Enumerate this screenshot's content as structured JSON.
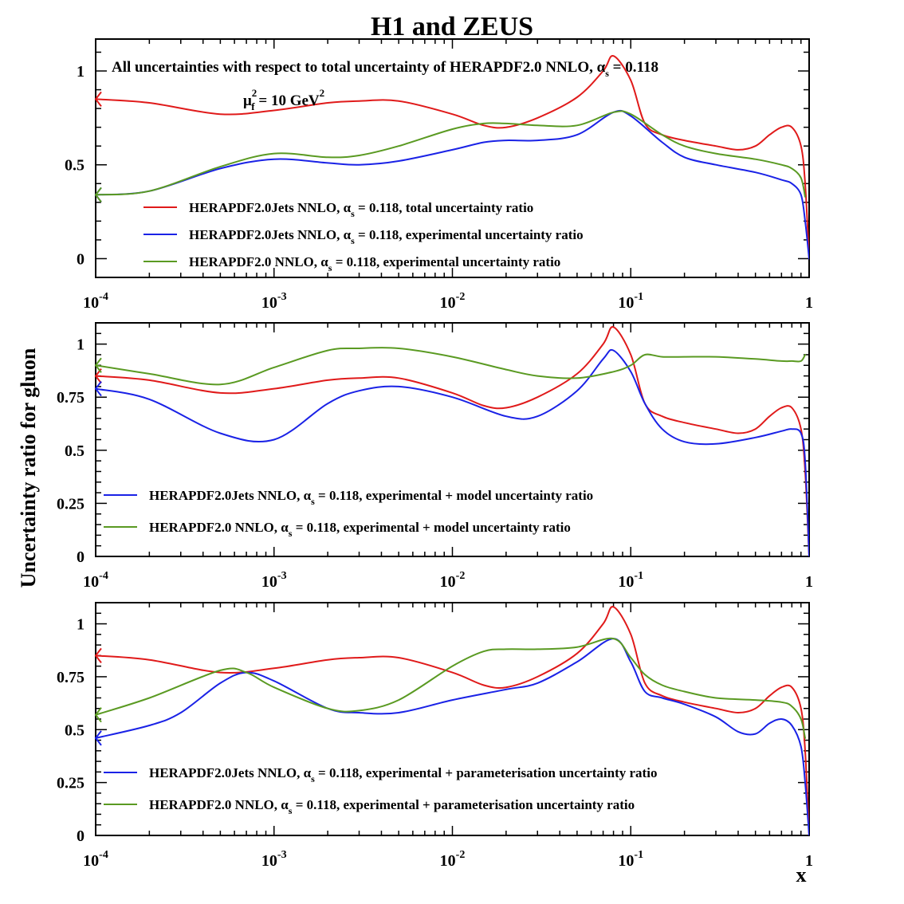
{
  "title": "H1 and ZEUS",
  "ylabel": "Uncertainty ratio for gluon",
  "xlabel": "x",
  "colors": {
    "red": "#e01a1a",
    "blue": "#1a22e6",
    "green": "#5a9a22"
  },
  "x_ticks": [
    {
      "value": 0.0001,
      "base": "10",
      "exp": "-4"
    },
    {
      "value": 0.001,
      "base": "10",
      "exp": "-3"
    },
    {
      "value": 0.01,
      "base": "10",
      "exp": "-2"
    },
    {
      "value": 0.1,
      "base": "10",
      "exp": "-1"
    },
    {
      "value": 1,
      "base": "1",
      "exp": ""
    }
  ],
  "chart_data": [
    {
      "type": "line",
      "xscale": "log",
      "xlim": [
        0.0001,
        1
      ],
      "ylim": [
        -0.1,
        1.17
      ],
      "y_ticks": [
        {
          "v": 0,
          "label": "0"
        },
        {
          "v": 0.5,
          "label": "0.5"
        },
        {
          "v": 1,
          "label": "1"
        }
      ],
      "annotation": {
        "pre": "All uncertainties with respect to total uncertainty of  HERAPDF2.0 NNLO, ",
        "sym": "α",
        "sub": "s",
        "post": " = 0.118"
      },
      "scale_label": {
        "mu": "μ",
        "sub": "f",
        "sup1": "2",
        "mid": " = 10 GeV",
        "sup2": "2"
      },
      "series": [
        {
          "color": "red",
          "legend": {
            "pre": "HERAPDF2.0Jets NNLO, ",
            "sym": "α",
            "sub": "s",
            "post": " = 0.118, total uncertainty ratio"
          },
          "x": [
            0.0001,
            0.0002,
            0.0005,
            0.001,
            0.002,
            0.003,
            0.005,
            0.01,
            0.015,
            0.02,
            0.03,
            0.05,
            0.07,
            0.08,
            0.1,
            0.12,
            0.15,
            0.2,
            0.3,
            0.4,
            0.5,
            0.6,
            0.7,
            0.8,
            0.9,
            0.95,
            1
          ],
          "y": [
            0.85,
            0.83,
            0.77,
            0.79,
            0.83,
            0.84,
            0.84,
            0.77,
            0.71,
            0.7,
            0.75,
            0.86,
            1.0,
            1.08,
            0.95,
            0.72,
            0.66,
            0.63,
            0.6,
            0.58,
            0.6,
            0.66,
            0.7,
            0.7,
            0.6,
            0.4,
            0.0
          ]
        },
        {
          "color": "blue",
          "legend": {
            "pre": "HERAPDF2.0Jets NNLO, ",
            "sym": "α",
            "sub": "s",
            "post": " = 0.118, experimental uncertainty ratio"
          },
          "x": [
            0.0001,
            0.0002,
            0.0005,
            0.001,
            0.002,
            0.003,
            0.005,
            0.01,
            0.015,
            0.02,
            0.03,
            0.05,
            0.08,
            0.1,
            0.15,
            0.2,
            0.3,
            0.5,
            0.7,
            0.8,
            0.9,
            0.95,
            1
          ],
          "y": [
            0.34,
            0.36,
            0.48,
            0.53,
            0.51,
            0.5,
            0.52,
            0.58,
            0.62,
            0.63,
            0.63,
            0.66,
            0.78,
            0.76,
            0.62,
            0.54,
            0.5,
            0.46,
            0.42,
            0.4,
            0.34,
            0.2,
            0.0
          ]
        },
        {
          "color": "green",
          "legend": {
            "pre": "HERAPDF2.0 NNLO, ",
            "sym": "α",
            "sub": "s",
            "post": " = 0.118, experimental uncertainty ratio"
          },
          "x": [
            0.0001,
            0.0002,
            0.0005,
            0.001,
            0.002,
            0.003,
            0.005,
            0.01,
            0.015,
            0.02,
            0.03,
            0.05,
            0.08,
            0.1,
            0.15,
            0.2,
            0.3,
            0.5,
            0.7,
            0.8,
            0.9,
            0.95
          ],
          "y": [
            0.34,
            0.36,
            0.49,
            0.56,
            0.54,
            0.55,
            0.6,
            0.69,
            0.72,
            0.72,
            0.71,
            0.71,
            0.78,
            0.77,
            0.66,
            0.6,
            0.56,
            0.53,
            0.5,
            0.48,
            0.43,
            0.33
          ]
        }
      ]
    },
    {
      "type": "line",
      "xscale": "log",
      "xlim": [
        0.0001,
        1
      ],
      "ylim": [
        0,
        1.1
      ],
      "y_ticks": [
        {
          "v": 0,
          "label": "0"
        },
        {
          "v": 0.25,
          "label": "0.25"
        },
        {
          "v": 0.5,
          "label": "0.5"
        },
        {
          "v": 0.75,
          "label": "0.75"
        },
        {
          "v": 1,
          "label": "1"
        }
      ],
      "series": [
        {
          "color": "red",
          "x": [
            0.0001,
            0.0002,
            0.0005,
            0.001,
            0.002,
            0.003,
            0.005,
            0.01,
            0.015,
            0.02,
            0.03,
            0.05,
            0.07,
            0.08,
            0.1,
            0.12,
            0.15,
            0.2,
            0.3,
            0.4,
            0.5,
            0.6,
            0.7,
            0.8,
            0.9,
            0.95,
            1
          ],
          "y": [
            0.85,
            0.83,
            0.77,
            0.79,
            0.83,
            0.84,
            0.84,
            0.77,
            0.71,
            0.7,
            0.75,
            0.86,
            1.0,
            1.08,
            0.95,
            0.72,
            0.66,
            0.63,
            0.6,
            0.58,
            0.6,
            0.66,
            0.7,
            0.7,
            0.6,
            0.4,
            0.0
          ]
        },
        {
          "color": "blue",
          "legend": {
            "pre": "HERAPDF2.0Jets NNLO, ",
            "sym": "α",
            "sub": "s",
            "post": " = 0.118, experimental + model uncertainty ratio"
          },
          "x": [
            0.0001,
            0.0002,
            0.0005,
            0.001,
            0.002,
            0.003,
            0.005,
            0.01,
            0.02,
            0.03,
            0.05,
            0.07,
            0.08,
            0.1,
            0.12,
            0.15,
            0.2,
            0.3,
            0.5,
            0.7,
            0.8,
            0.9,
            0.95,
            1
          ],
          "y": [
            0.79,
            0.74,
            0.58,
            0.55,
            0.72,
            0.78,
            0.8,
            0.75,
            0.66,
            0.66,
            0.78,
            0.93,
            0.97,
            0.87,
            0.72,
            0.6,
            0.54,
            0.53,
            0.56,
            0.59,
            0.6,
            0.58,
            0.45,
            0.0
          ]
        },
        {
          "color": "green",
          "legend": {
            "pre": "HERAPDF2.0 NNLO, ",
            "sym": "α",
            "sub": "s",
            "post": " = 0.118, experimental + model uncertainty ratio"
          },
          "x": [
            0.0001,
            0.0002,
            0.0005,
            0.001,
            0.002,
            0.003,
            0.005,
            0.01,
            0.02,
            0.03,
            0.05,
            0.08,
            0.1,
            0.12,
            0.15,
            0.2,
            0.3,
            0.5,
            0.7,
            0.8,
            0.9,
            0.95
          ],
          "y": [
            0.9,
            0.86,
            0.81,
            0.89,
            0.97,
            0.98,
            0.98,
            0.94,
            0.88,
            0.85,
            0.84,
            0.87,
            0.9,
            0.95,
            0.94,
            0.94,
            0.94,
            0.93,
            0.92,
            0.92,
            0.92,
            0.95
          ]
        }
      ]
    },
    {
      "type": "line",
      "xscale": "log",
      "xlim": [
        0.0001,
        1
      ],
      "ylim": [
        0,
        1.1
      ],
      "y_ticks": [
        {
          "v": 0,
          "label": "0"
        },
        {
          "v": 0.25,
          "label": "0.25"
        },
        {
          "v": 0.5,
          "label": "0.5"
        },
        {
          "v": 0.75,
          "label": "0.75"
        },
        {
          "v": 1,
          "label": "1"
        }
      ],
      "series": [
        {
          "color": "red",
          "x": [
            0.0001,
            0.0002,
            0.0005,
            0.001,
            0.002,
            0.003,
            0.005,
            0.01,
            0.015,
            0.02,
            0.03,
            0.05,
            0.07,
            0.08,
            0.1,
            0.12,
            0.15,
            0.2,
            0.3,
            0.4,
            0.5,
            0.6,
            0.7,
            0.8,
            0.9,
            0.95,
            1
          ],
          "y": [
            0.85,
            0.83,
            0.77,
            0.79,
            0.83,
            0.84,
            0.84,
            0.77,
            0.71,
            0.7,
            0.75,
            0.86,
            1.0,
            1.08,
            0.95,
            0.72,
            0.66,
            0.63,
            0.6,
            0.58,
            0.6,
            0.66,
            0.7,
            0.7,
            0.6,
            0.4,
            0.0
          ]
        },
        {
          "color": "blue",
          "legend": {
            "pre": "HERAPDF2.0Jets NNLO, ",
            "sym": "α",
            "sub": "s",
            "post": " = 0.118, experimental + parameterisation uncertainty ratio"
          },
          "x": [
            0.0001,
            0.0002,
            0.0003,
            0.0005,
            0.0007,
            0.001,
            0.002,
            0.003,
            0.005,
            0.01,
            0.02,
            0.03,
            0.05,
            0.08,
            0.1,
            0.12,
            0.15,
            0.2,
            0.3,
            0.4,
            0.5,
            0.6,
            0.7,
            0.8,
            0.9,
            0.95,
            1
          ],
          "y": [
            0.46,
            0.52,
            0.58,
            0.72,
            0.77,
            0.73,
            0.6,
            0.58,
            0.58,
            0.64,
            0.69,
            0.72,
            0.82,
            0.93,
            0.82,
            0.68,
            0.65,
            0.62,
            0.56,
            0.49,
            0.48,
            0.53,
            0.55,
            0.52,
            0.42,
            0.25,
            0.0
          ]
        },
        {
          "color": "green",
          "legend": {
            "pre": "HERAPDF2.0 NNLO, ",
            "sym": "α",
            "sub": "s",
            "post": " = 0.118, experimental + parameterisation uncertainty ratio"
          },
          "x": [
            0.0001,
            0.0002,
            0.0005,
            0.0007,
            0.001,
            0.002,
            0.003,
            0.005,
            0.01,
            0.015,
            0.02,
            0.03,
            0.05,
            0.08,
            0.1,
            0.12,
            0.15,
            0.2,
            0.3,
            0.5,
            0.7,
            0.8,
            0.9,
            0.95
          ],
          "y": [
            0.57,
            0.65,
            0.78,
            0.77,
            0.7,
            0.6,
            0.59,
            0.64,
            0.8,
            0.87,
            0.88,
            0.88,
            0.89,
            0.93,
            0.84,
            0.76,
            0.71,
            0.68,
            0.65,
            0.64,
            0.63,
            0.61,
            0.55,
            0.46
          ]
        }
      ]
    }
  ]
}
